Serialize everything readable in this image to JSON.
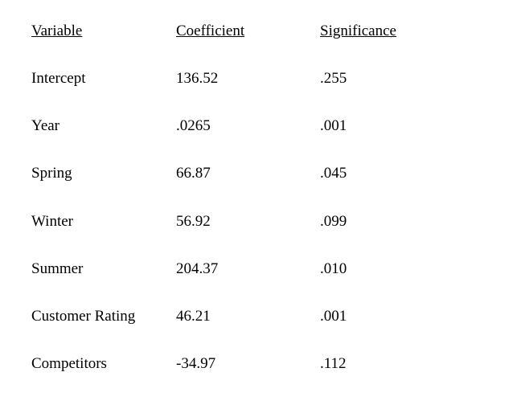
{
  "table": {
    "header": [
      "Variable",
      "Coefficient",
      "Significance"
    ],
    "rows": [
      [
        "Intercept",
        "136.52",
        ".255"
      ],
      [
        "Year",
        ".0265",
        ".001"
      ],
      [
        "Spring",
        "66.87",
        ".045"
      ],
      [
        "Winter",
        "56.92",
        ".099"
      ],
      [
        "Summer",
        "204.37",
        ".010"
      ],
      [
        "Customer Rating",
        "46.21",
        ".001"
      ],
      [
        "Competitors",
        "-34.97",
        ".112"
      ]
    ]
  }
}
